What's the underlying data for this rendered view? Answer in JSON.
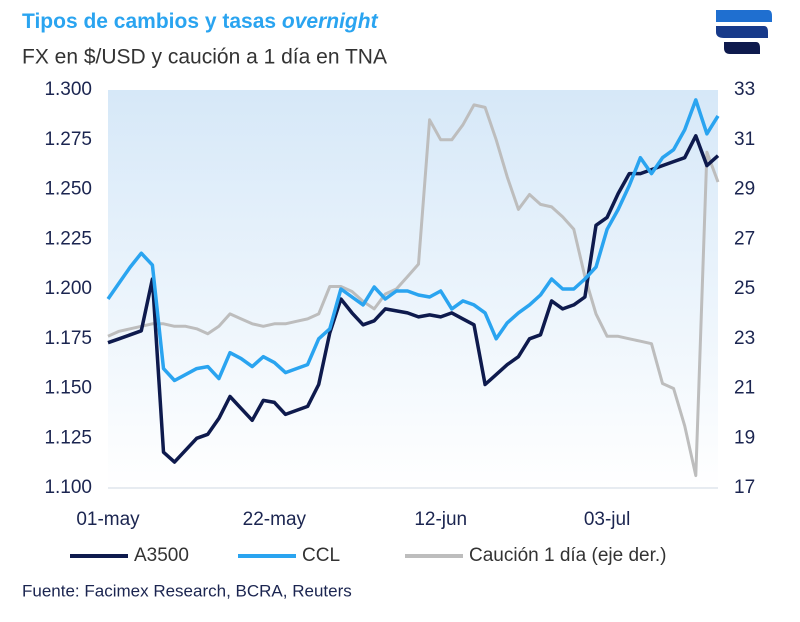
{
  "chart_data": {
    "type": "line",
    "title": "Tipos de cambios y tasas",
    "title_emphasis": "overnight",
    "subtitle": "FX en $/USD y caución a 1 día en TNA",
    "source": "Fuente: Facimex Research, BCRA, Reuters",
    "categories": [
      "01-may",
      null,
      null,
      null,
      null,
      null,
      null,
      null,
      null,
      null,
      null,
      null,
      null,
      null,
      null,
      "22-may",
      null,
      null,
      null,
      null,
      null,
      null,
      null,
      null,
      null,
      null,
      null,
      null,
      null,
      null,
      "12-jun",
      null,
      null,
      null,
      null,
      null,
      null,
      null,
      null,
      null,
      null,
      null,
      null,
      null,
      null,
      "03-jul",
      null,
      null,
      null,
      null,
      null,
      null,
      null,
      null,
      null,
      null
    ],
    "series": [
      {
        "name": "A3500",
        "color": "#0e1a4d",
        "values": [
          1173,
          1175,
          1177,
          1179,
          1205,
          1118,
          1113,
          1119,
          1125,
          1127,
          1135,
          1146,
          1140,
          1134,
          1144,
          1143,
          1137,
          1139,
          1141,
          1152,
          1178,
          1195,
          1188,
          1182,
          1184,
          1190,
          1189,
          1188,
          1186,
          1187,
          1186,
          1188,
          1185,
          1182,
          1152,
          1157,
          1162,
          1166,
          1175,
          1177,
          1194,
          1190,
          1192,
          1196,
          1232,
          1236,
          1248,
          1258,
          1258,
          1260,
          1262,
          1264,
          1266,
          1277,
          1262,
          1267
        ]
      },
      {
        "name": "CCL",
        "color": "#2aa4f0",
        "values": [
          1195,
          1203,
          1211,
          1218,
          1212,
          1160,
          1154,
          1157,
          1160,
          1161,
          1155,
          1168,
          1165,
          1161,
          1166,
          1163,
          1158,
          1160,
          1162,
          1175,
          1180,
          1200,
          1196,
          1192,
          1201,
          1195,
          1199,
          1199,
          1197,
          1196,
          1199,
          1190,
          1194,
          1192,
          1188,
          1175,
          1183,
          1188,
          1192,
          1197,
          1205,
          1200,
          1200,
          1205,
          1211,
          1230,
          1240,
          1252,
          1266,
          1258,
          1266,
          1270,
          1280,
          1295,
          1278,
          1287
        ]
      },
      {
        "name": "Caución 1 día (eje der.)",
        "color": "#bdbdbd",
        "axis": "y2",
        "values": [
          23.1,
          23.3,
          23.4,
          23.5,
          23.6,
          23.6,
          23.5,
          23.5,
          23.4,
          23.2,
          23.5,
          24.0,
          23.8,
          23.6,
          23.5,
          23.6,
          23.6,
          23.7,
          23.8,
          24.0,
          25.1,
          25.1,
          24.9,
          24.5,
          24.2,
          24.8,
          25.0,
          25.5,
          26.0,
          31.8,
          31.0,
          31.0,
          31.6,
          32.4,
          32.3,
          31.0,
          29.5,
          28.2,
          28.8,
          28.4,
          28.3,
          27.9,
          27.4,
          25.5,
          24.0,
          23.1,
          23.1,
          23.0,
          22.9,
          22.8,
          21.2,
          21.0,
          19.5,
          17.5,
          30.5,
          29.3
        ]
      }
    ],
    "ylim": [
      1100,
      1300
    ],
    "yticks": [
      {
        "value": 1100,
        "label": "1.100"
      },
      {
        "value": 1125,
        "label": "1.125"
      },
      {
        "value": 1150,
        "label": "1.150"
      },
      {
        "value": 1175,
        "label": "1.175"
      },
      {
        "value": 1200,
        "label": "1.200"
      },
      {
        "value": 1225,
        "label": "1.225"
      },
      {
        "value": 1250,
        "label": "1.250"
      },
      {
        "value": 1275,
        "label": "1.275"
      },
      {
        "value": 1300,
        "label": "1.300"
      }
    ],
    "y2lim": [
      17,
      33
    ],
    "y2ticks": [
      17,
      19,
      21,
      23,
      25,
      27,
      29,
      31,
      33
    ]
  }
}
